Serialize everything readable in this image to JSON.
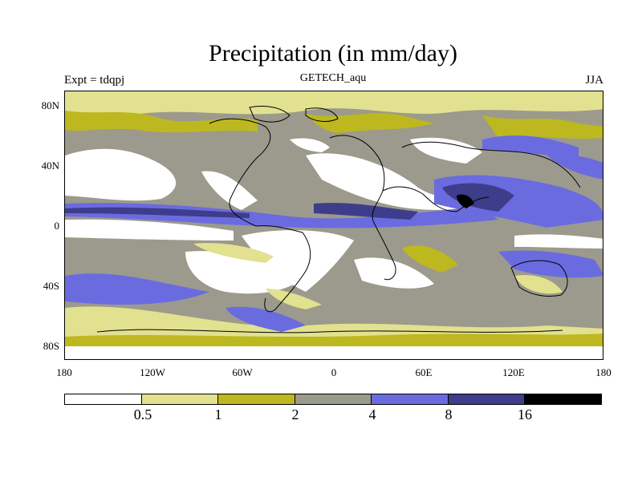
{
  "header": {
    "title": "Precipitation (in mm/day)",
    "subtitle": "GETECH_aqu",
    "left_label": "Expt = tdqpj",
    "right_label": "JJA"
  },
  "axes": {
    "y_ticks": [
      "80N",
      "40N",
      "0",
      "40S",
      "80S"
    ],
    "x_ticks": [
      "180",
      "120W",
      "60W",
      "0",
      "60E",
      "120E",
      "180"
    ]
  },
  "colorbar": {
    "colors": [
      "#ffffff",
      "#e2e18f",
      "#bdb81f",
      "#9c9a8c",
      "#6b6be0",
      "#3d3d8c",
      "#000000"
    ],
    "labels": [
      "0.5",
      "1",
      "2",
      "4",
      "8",
      "16"
    ]
  },
  "map_colors": {
    "ocean_bg": "#9c9a8c",
    "dry": "#ffffff",
    "light": "#e2e18f",
    "olive": "#bdb81f",
    "blue": "#6b6be0",
    "dark_blue": "#3d3d8c",
    "black": "#000000",
    "coast": "#000000"
  }
}
